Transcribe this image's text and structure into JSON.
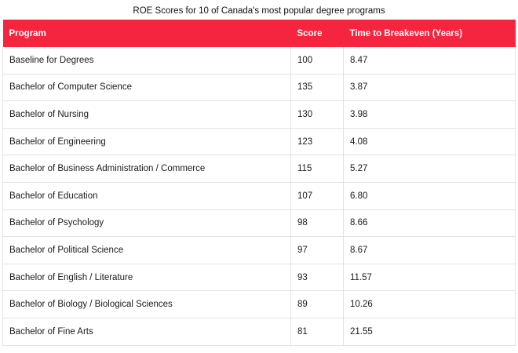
{
  "chart_data": {
    "type": "table",
    "title": "ROE Scores for 10 of Canada's most popular degree programs",
    "columns": [
      "Program",
      "Score",
      "Time to Breakeven (Years)"
    ],
    "rows": [
      {
        "program": "Baseline for Degrees",
        "score": "100",
        "time": "8.47"
      },
      {
        "program": "Bachelor of Computer Science",
        "score": "135",
        "time": "3.87"
      },
      {
        "program": "Bachelor of Nursing",
        "score": "130",
        "time": "3.98"
      },
      {
        "program": "Bachelor of Engineering",
        "score": "123",
        "time": "4.08"
      },
      {
        "program": "Bachelor of Business Administration / Commerce",
        "score": "115",
        "time": "5.27"
      },
      {
        "program": "Bachelor of Education",
        "score": "107",
        "time": "6.80"
      },
      {
        "program": "Bachelor of Psychology",
        "score": "98",
        "time": "8.66"
      },
      {
        "program": "Bachelor of Political Science",
        "score": "97",
        "time": "8.67"
      },
      {
        "program": "Bachelor of English / Literature",
        "score": "93",
        "time": "11.57"
      },
      {
        "program": "Bachelor of Biology / Biological Sciences",
        "score": "89",
        "time": "10.26"
      },
      {
        "program": "Bachelor of Fine Arts",
        "score": "81",
        "time": "21.55"
      }
    ],
    "header_color": "#f5243f",
    "border_color": "#e3e3e3"
  }
}
